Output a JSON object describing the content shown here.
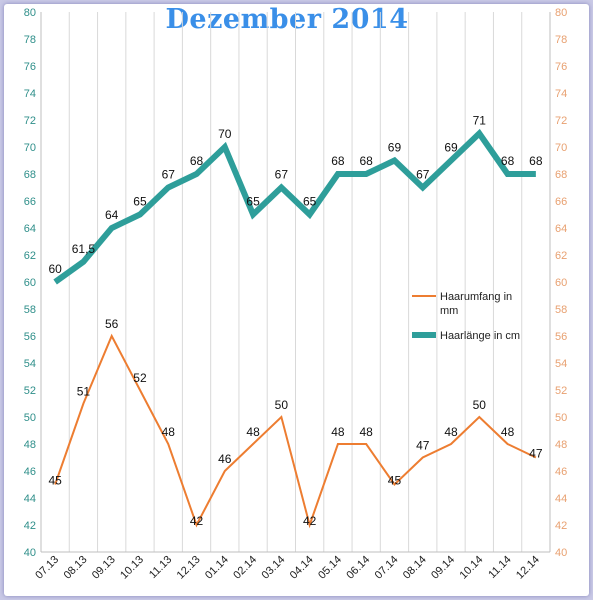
{
  "chart_data": {
    "type": "line",
    "title": "Dezember 2014",
    "xlabel": "",
    "ylabel": "",
    "ylim": [
      40,
      80
    ],
    "y_ticks": [
      40,
      42,
      44,
      46,
      48,
      50,
      52,
      54,
      56,
      58,
      60,
      62,
      64,
      66,
      68,
      70,
      72,
      74,
      76,
      78,
      80
    ],
    "categories": [
      "07.13",
      "08.13",
      "09.13",
      "10.13",
      "11.13",
      "12.13",
      "01.14",
      "02.14",
      "03.14",
      "04.14",
      "05.14",
      "06.14",
      "07.14",
      "08.14",
      "09.14",
      "10.14",
      "11.14",
      "12.14"
    ],
    "grid": "vertical",
    "legend_position": "right",
    "series": [
      {
        "name": "Haarumfang in mm",
        "color": "#ed7d31",
        "values": [
          45,
          51,
          56,
          52,
          48,
          42,
          46,
          48,
          50,
          42,
          48,
          48,
          45,
          47,
          48,
          50,
          48,
          47
        ],
        "labels": [
          "45",
          "51",
          "56",
          "52",
          "48",
          "42",
          "46",
          "48",
          "50",
          "42",
          "48",
          "48",
          "45",
          "47",
          "48",
          "50",
          "48",
          "47"
        ]
      },
      {
        "name": "Haarlänge in cm",
        "color": "#2e9e9a",
        "values": [
          60,
          61.5,
          64,
          65,
          67,
          68,
          70,
          65,
          67,
          65,
          68,
          68,
          69,
          67,
          69,
          71,
          68,
          68
        ],
        "labels": [
          "60",
          "61,5",
          "64",
          "65",
          "67",
          "68",
          "70",
          "65",
          "67",
          "65",
          "68",
          "68",
          "69",
          "67",
          "69",
          "71",
          "68",
          "68"
        ]
      }
    ]
  }
}
